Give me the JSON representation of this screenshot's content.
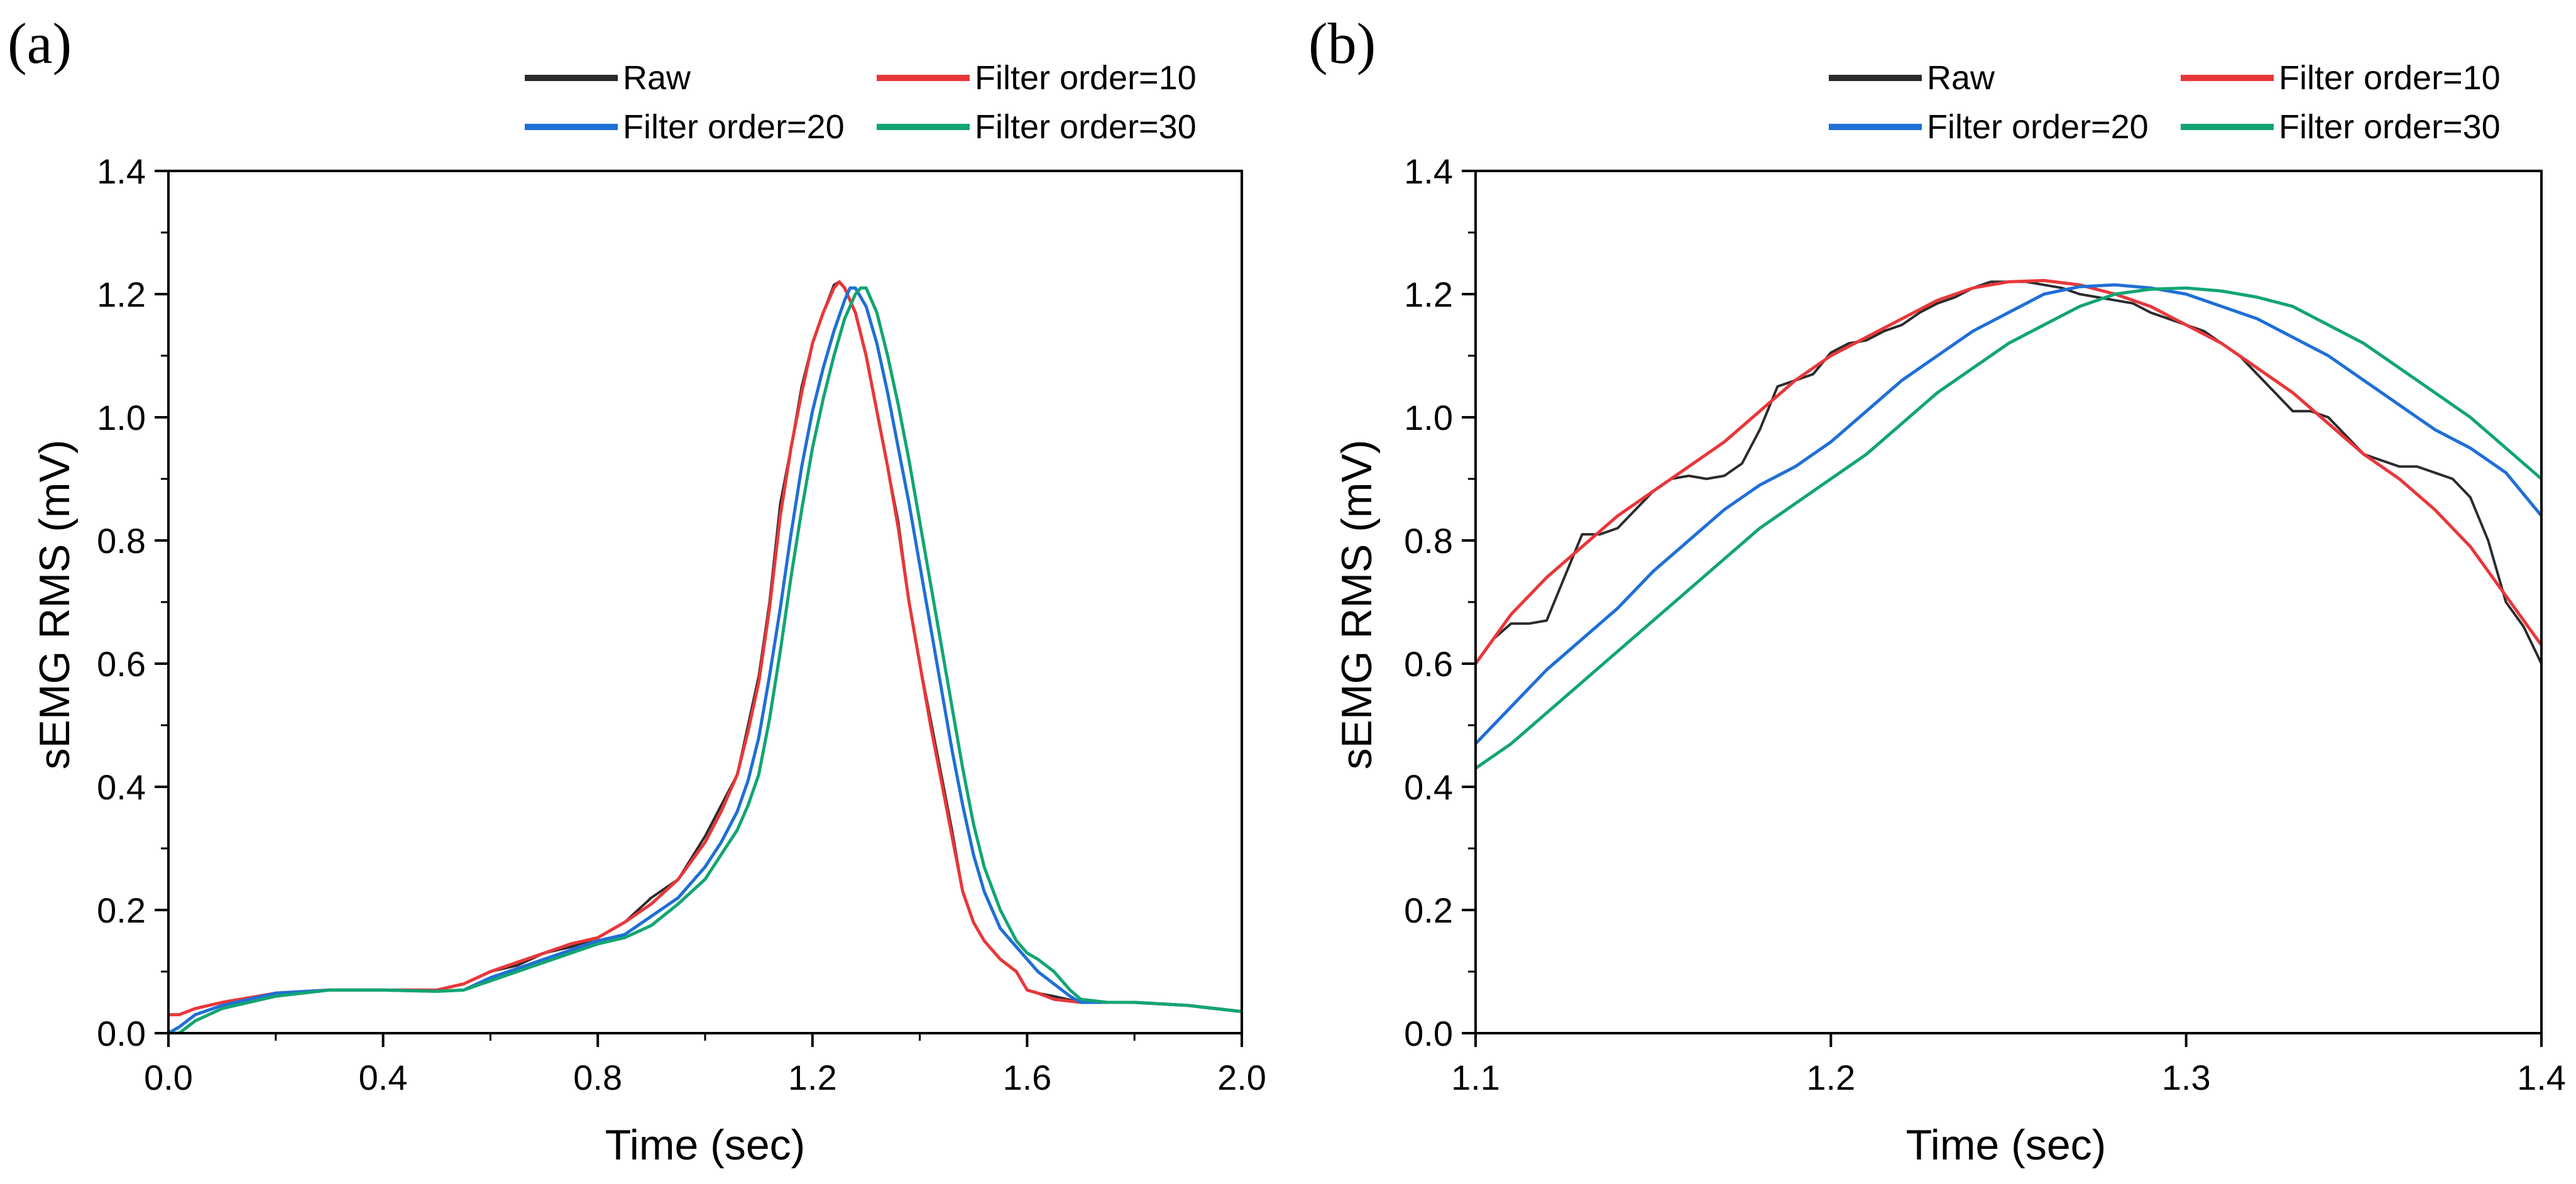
{
  "chart_data": [
    {
      "panel_label": "(a)",
      "type": "line",
      "xlabel": "Time (sec)",
      "ylabel": "sEMG RMS (mV)",
      "xlim": [
        0.0,
        2.0
      ],
      "ylim": [
        0.0,
        1.4
      ],
      "xticks": [
        0.0,
        0.4,
        0.8,
        1.2,
        1.6,
        2.0
      ],
      "xtick_labels": [
        "0.0",
        "0.4",
        "0.8",
        "1.2",
        "1.6",
        "2.0"
      ],
      "yticks": [
        0.0,
        0.2,
        0.4,
        0.6,
        0.8,
        1.0,
        1.2,
        1.4
      ],
      "ytick_labels": [
        "0.0",
        "0.2",
        "0.4",
        "0.6",
        "0.8",
        "1.0",
        "1.2",
        "1.4"
      ],
      "grid": false,
      "legend_position": "top",
      "series": [
        {
          "name": "Raw",
          "color": "#2b2b2b",
          "x": [
            0.0,
            0.02,
            0.05,
            0.1,
            0.2,
            0.3,
            0.4,
            0.5,
            0.55,
            0.6,
            0.65,
            0.7,
            0.75,
            0.8,
            0.85,
            0.9,
            0.95,
            1.0,
            1.03,
            1.06,
            1.08,
            1.1,
            1.12,
            1.14,
            1.16,
            1.18,
            1.2,
            1.22,
            1.24,
            1.25,
            1.26,
            1.28,
            1.3,
            1.32,
            1.34,
            1.36,
            1.38,
            1.4,
            1.42,
            1.44,
            1.46,
            1.48,
            1.5,
            1.52,
            1.55,
            1.58,
            1.6,
            1.62,
            1.65,
            1.7,
            1.75,
            1.8,
            1.9,
            2.0
          ],
          "y": [
            0.03,
            0.03,
            0.04,
            0.05,
            0.065,
            0.07,
            0.07,
            0.07,
            0.08,
            0.1,
            0.11,
            0.13,
            0.14,
            0.155,
            0.18,
            0.22,
            0.25,
            0.32,
            0.37,
            0.42,
            0.5,
            0.58,
            0.7,
            0.86,
            0.95,
            1.05,
            1.12,
            1.17,
            1.215,
            1.22,
            1.21,
            1.17,
            1.1,
            1.01,
            0.92,
            0.83,
            0.7,
            0.6,
            0.51,
            0.42,
            0.33,
            0.23,
            0.18,
            0.15,
            0.12,
            0.1,
            0.07,
            0.065,
            0.06,
            0.05,
            0.05,
            0.05,
            0.045,
            0.035
          ]
        },
        {
          "name": "Filter order=10",
          "color": "#e8373a",
          "x": [
            0.0,
            0.02,
            0.05,
            0.1,
            0.2,
            0.3,
            0.4,
            0.5,
            0.55,
            0.6,
            0.65,
            0.7,
            0.75,
            0.8,
            0.85,
            0.9,
            0.95,
            1.0,
            1.03,
            1.06,
            1.08,
            1.1,
            1.12,
            1.14,
            1.16,
            1.18,
            1.2,
            1.22,
            1.24,
            1.25,
            1.26,
            1.28,
            1.3,
            1.32,
            1.34,
            1.36,
            1.38,
            1.4,
            1.42,
            1.44,
            1.46,
            1.48,
            1.5,
            1.52,
            1.55,
            1.58,
            1.6,
            1.62,
            1.65,
            1.7,
            1.75,
            1.8,
            1.9,
            2.0
          ],
          "y": [
            0.03,
            0.03,
            0.04,
            0.05,
            0.065,
            0.07,
            0.07,
            0.07,
            0.08,
            0.1,
            0.115,
            0.13,
            0.145,
            0.155,
            0.18,
            0.21,
            0.25,
            0.31,
            0.36,
            0.42,
            0.49,
            0.57,
            0.69,
            0.84,
            0.95,
            1.04,
            1.12,
            1.17,
            1.21,
            1.22,
            1.21,
            1.17,
            1.1,
            1.01,
            0.92,
            0.82,
            0.7,
            0.6,
            0.5,
            0.41,
            0.32,
            0.23,
            0.18,
            0.15,
            0.12,
            0.1,
            0.07,
            0.065,
            0.055,
            0.05,
            0.05,
            0.05,
            0.045,
            0.035
          ]
        },
        {
          "name": "Filter order=20",
          "color": "#1f6fd6",
          "x": [
            0.0,
            0.02,
            0.05,
            0.1,
            0.2,
            0.3,
            0.4,
            0.5,
            0.55,
            0.6,
            0.65,
            0.7,
            0.75,
            0.8,
            0.85,
            0.9,
            0.95,
            1.0,
            1.03,
            1.06,
            1.08,
            1.1,
            1.12,
            1.14,
            1.16,
            1.18,
            1.2,
            1.22,
            1.24,
            1.26,
            1.27,
            1.28,
            1.3,
            1.32,
            1.34,
            1.36,
            1.38,
            1.4,
            1.42,
            1.44,
            1.46,
            1.48,
            1.5,
            1.52,
            1.55,
            1.58,
            1.6,
            1.62,
            1.65,
            1.68,
            1.7,
            1.75,
            1.8,
            1.9,
            2.0
          ],
          "y": [
            0.0,
            0.01,
            0.03,
            0.045,
            0.065,
            0.07,
            0.07,
            0.068,
            0.07,
            0.09,
            0.105,
            0.12,
            0.135,
            0.15,
            0.16,
            0.19,
            0.22,
            0.27,
            0.31,
            0.36,
            0.41,
            0.48,
            0.58,
            0.69,
            0.81,
            0.92,
            1.01,
            1.08,
            1.14,
            1.19,
            1.21,
            1.21,
            1.18,
            1.12,
            1.04,
            0.95,
            0.86,
            0.76,
            0.66,
            0.56,
            0.46,
            0.37,
            0.29,
            0.23,
            0.17,
            0.14,
            0.12,
            0.1,
            0.08,
            0.06,
            0.05,
            0.05,
            0.05,
            0.045,
            0.035
          ]
        },
        {
          "name": "Filter order=30",
          "color": "#12a572",
          "x": [
            0.0,
            0.02,
            0.05,
            0.1,
            0.2,
            0.3,
            0.4,
            0.5,
            0.55,
            0.6,
            0.65,
            0.7,
            0.75,
            0.8,
            0.85,
            0.9,
            0.95,
            1.0,
            1.03,
            1.06,
            1.08,
            1.1,
            1.12,
            1.14,
            1.16,
            1.18,
            1.2,
            1.22,
            1.24,
            1.26,
            1.28,
            1.29,
            1.3,
            1.32,
            1.34,
            1.36,
            1.38,
            1.4,
            1.42,
            1.44,
            1.46,
            1.48,
            1.5,
            1.52,
            1.55,
            1.58,
            1.6,
            1.62,
            1.65,
            1.68,
            1.7,
            1.75,
            1.8,
            1.9,
            2.0
          ],
          "y": [
            0.0,
            0.0,
            0.02,
            0.04,
            0.06,
            0.07,
            0.07,
            0.068,
            0.07,
            0.085,
            0.1,
            0.115,
            0.13,
            0.145,
            0.155,
            0.175,
            0.21,
            0.25,
            0.29,
            0.33,
            0.37,
            0.42,
            0.51,
            0.62,
            0.74,
            0.85,
            0.95,
            1.03,
            1.1,
            1.16,
            1.2,
            1.21,
            1.21,
            1.17,
            1.1,
            1.02,
            0.93,
            0.83,
            0.73,
            0.63,
            0.53,
            0.43,
            0.34,
            0.27,
            0.2,
            0.15,
            0.13,
            0.12,
            0.1,
            0.07,
            0.055,
            0.05,
            0.05,
            0.045,
            0.035
          ]
        }
      ]
    },
    {
      "panel_label": "(b)",
      "type": "line",
      "xlabel": "Time (sec)",
      "ylabel": "sEMG RMS (mV)",
      "xlim": [
        1.1,
        1.4
      ],
      "ylim": [
        0.0,
        1.4
      ],
      "xticks": [
        1.1,
        1.2,
        1.3,
        1.4
      ],
      "xtick_labels": [
        "1.1",
        "1.2",
        "1.3",
        "1.4"
      ],
      "yticks": [
        0.0,
        0.2,
        0.4,
        0.6,
        0.8,
        1.0,
        1.2,
        1.4
      ],
      "ytick_labels": [
        "0.0",
        "0.2",
        "0.4",
        "0.6",
        "0.8",
        "1.0",
        "1.2",
        "1.4"
      ],
      "grid": false,
      "legend_position": "top",
      "series": [
        {
          "name": "Raw",
          "color": "#2b2b2b",
          "x": [
            1.1,
            1.105,
            1.11,
            1.115,
            1.12,
            1.125,
            1.13,
            1.135,
            1.14,
            1.145,
            1.15,
            1.155,
            1.16,
            1.165,
            1.17,
            1.175,
            1.18,
            1.185,
            1.19,
            1.195,
            1.2,
            1.205,
            1.21,
            1.215,
            1.22,
            1.225,
            1.23,
            1.235,
            1.24,
            1.245,
            1.25,
            1.255,
            1.26,
            1.265,
            1.27,
            1.275,
            1.28,
            1.285,
            1.29,
            1.295,
            1.3,
            1.305,
            1.31,
            1.315,
            1.32,
            1.325,
            1.33,
            1.335,
            1.34,
            1.345,
            1.35,
            1.355,
            1.36,
            1.365,
            1.37,
            1.375,
            1.38,
            1.385,
            1.39,
            1.395,
            1.4
          ],
          "y": [
            0.6,
            0.64,
            0.665,
            0.665,
            0.67,
            0.74,
            0.81,
            0.81,
            0.82,
            0.85,
            0.88,
            0.9,
            0.905,
            0.9,
            0.905,
            0.925,
            0.98,
            1.05,
            1.06,
            1.07,
            1.105,
            1.12,
            1.125,
            1.14,
            1.15,
            1.17,
            1.185,
            1.195,
            1.21,
            1.22,
            1.22,
            1.22,
            1.215,
            1.21,
            1.2,
            1.195,
            1.19,
            1.185,
            1.17,
            1.16,
            1.15,
            1.14,
            1.12,
            1.1,
            1.07,
            1.04,
            1.01,
            1.01,
            1.0,
            0.97,
            0.94,
            0.93,
            0.92,
            0.92,
            0.91,
            0.9,
            0.87,
            0.8,
            0.7,
            0.66,
            0.6
          ]
        },
        {
          "name": "Filter order=10",
          "color": "#e8373a",
          "x": [
            1.1,
            1.11,
            1.12,
            1.13,
            1.14,
            1.15,
            1.16,
            1.17,
            1.18,
            1.19,
            1.2,
            1.21,
            1.22,
            1.23,
            1.24,
            1.25,
            1.26,
            1.27,
            1.28,
            1.29,
            1.3,
            1.31,
            1.32,
            1.33,
            1.34,
            1.35,
            1.36,
            1.37,
            1.38,
            1.39,
            1.4
          ],
          "y": [
            0.6,
            0.68,
            0.74,
            0.79,
            0.84,
            0.88,
            0.92,
            0.96,
            1.01,
            1.06,
            1.1,
            1.13,
            1.16,
            1.19,
            1.21,
            1.22,
            1.222,
            1.215,
            1.2,
            1.18,
            1.15,
            1.12,
            1.08,
            1.04,
            0.99,
            0.94,
            0.9,
            0.85,
            0.79,
            0.71,
            0.63
          ]
        },
        {
          "name": "Filter order=20",
          "color": "#1f6fd6",
          "x": [
            1.1,
            1.11,
            1.12,
            1.13,
            1.14,
            1.15,
            1.16,
            1.17,
            1.18,
            1.19,
            1.2,
            1.21,
            1.22,
            1.23,
            1.24,
            1.25,
            1.26,
            1.27,
            1.28,
            1.29,
            1.3,
            1.31,
            1.32,
            1.33,
            1.34,
            1.35,
            1.36,
            1.37,
            1.38,
            1.39,
            1.4
          ],
          "y": [
            0.47,
            0.53,
            0.59,
            0.64,
            0.69,
            0.75,
            0.8,
            0.85,
            0.89,
            0.92,
            0.96,
            1.01,
            1.06,
            1.1,
            1.14,
            1.17,
            1.2,
            1.212,
            1.215,
            1.21,
            1.2,
            1.18,
            1.16,
            1.13,
            1.1,
            1.06,
            1.02,
            0.98,
            0.95,
            0.91,
            0.84
          ]
        },
        {
          "name": "Filter order=30",
          "color": "#12a572",
          "x": [
            1.1,
            1.11,
            1.12,
            1.13,
            1.14,
            1.15,
            1.16,
            1.17,
            1.18,
            1.19,
            1.2,
            1.21,
            1.22,
            1.23,
            1.24,
            1.25,
            1.26,
            1.27,
            1.28,
            1.29,
            1.3,
            1.31,
            1.32,
            1.33,
            1.34,
            1.35,
            1.36,
            1.37,
            1.38,
            1.39,
            1.4
          ],
          "y": [
            0.43,
            0.47,
            0.52,
            0.57,
            0.62,
            0.67,
            0.72,
            0.77,
            0.82,
            0.86,
            0.9,
            0.94,
            0.99,
            1.04,
            1.08,
            1.12,
            1.15,
            1.18,
            1.2,
            1.208,
            1.21,
            1.205,
            1.195,
            1.18,
            1.15,
            1.12,
            1.08,
            1.04,
            1.0,
            0.95,
            0.9
          ]
        }
      ]
    }
  ]
}
